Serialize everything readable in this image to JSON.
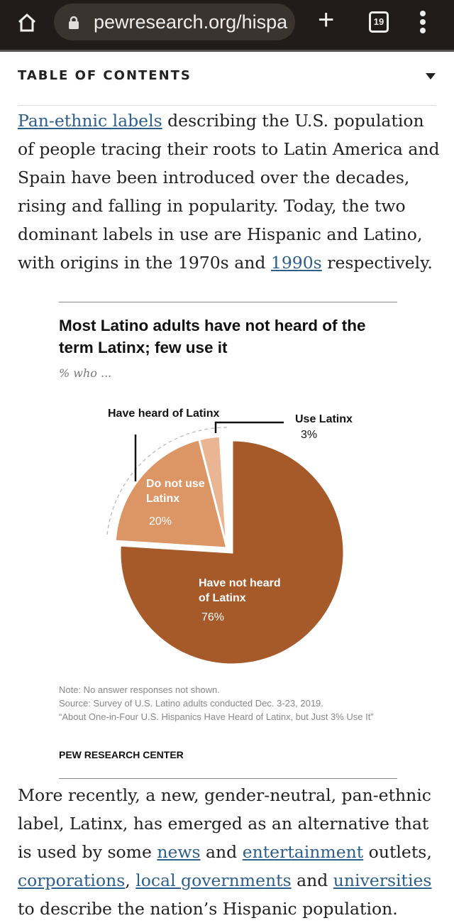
{
  "browser": {
    "url": "pewresearch.org/hispa",
    "tab_count": "19",
    "icons": [
      "home-icon",
      "lock-icon",
      "plus-icon",
      "tabs-icon",
      "more-vert-icon"
    ]
  },
  "toc": {
    "label": "TABLE OF CONTENTS"
  },
  "para1": {
    "link1": "Pan-ethnic labels",
    "t1": " describing the U.S. population of people tracing their roots to Latin America and Spain have been introduced over the decades, rising and falling in popularity. Today, the two dominant labels in use are Hispanic and Latino, with origins in the 1970s and ",
    "link2": "1990s",
    "t2": " respectively."
  },
  "chart_data": {
    "type": "pie",
    "title": "Most Latino adults have not heard of the term Latinx; few use it",
    "subtitle": "% who ...",
    "slices": [
      {
        "label": "Have not heard of Latinx",
        "value": 76,
        "value_label": "76%",
        "color": "#a65a2a"
      },
      {
        "label": "Do not use Latinx",
        "value": 20,
        "value_label": "20%",
        "color": "#dc9565"
      },
      {
        "label": "Use Latinx",
        "value": 3,
        "value_label": "3%",
        "color": "#e9b592"
      }
    ],
    "group_label": "Have heard of Latinx",
    "note": "Note: No answer responses not shown.",
    "source": "Source: Survey of U.S. Latino adults conducted Dec. 3-23, 2019.",
    "report": "“About One-in-Four U.S. Hispanics Have Heard of Latinx, but Just 3% Use It”",
    "credit": "PEW RESEARCH CENTER"
  },
  "para2": {
    "t1": "More recently, a new, gender-neutral, pan-ethnic label, Latinx, has emerged as an alternative that is used by some ",
    "l1": "news",
    "t2": " and ",
    "l2": "entertainment",
    "t3": " outlets, ",
    "l3": "corporations",
    "t4": ", ",
    "l4": "local governments",
    "t5": " and ",
    "l5": "universities",
    "t6": " to describe the nation’s Hispanic population."
  }
}
